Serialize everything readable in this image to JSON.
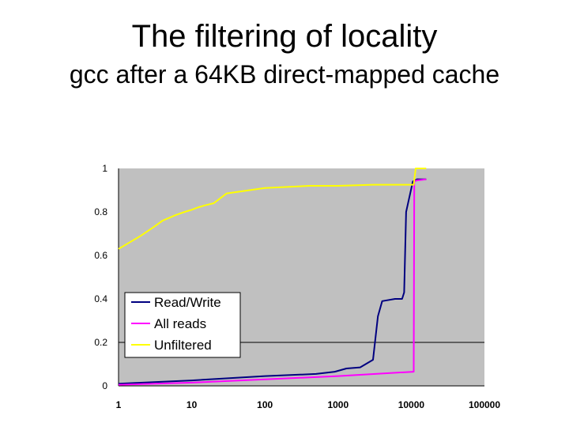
{
  "title": "The filtering of locality",
  "subtitle": "gcc after a 64KB direct-mapped cache",
  "colors": {
    "plot_background": "#c0c0c0",
    "Read/Write": "#000080",
    "All reads": "#ff00ff",
    "Unfiltered": "#ffff00"
  },
  "chart_data": {
    "type": "line",
    "title": "",
    "xlabel": "",
    "ylabel": "",
    "x_scale": "log",
    "xlim": [
      1,
      100000
    ],
    "ylim": [
      0,
      1
    ],
    "x_ticks": [
      "1",
      "10",
      "100",
      "1000",
      "10000",
      "100000"
    ],
    "y_ticks": [
      "0",
      "0.2",
      "0.4",
      "0.6",
      "0.8",
      "1"
    ],
    "gridlines": [
      0.2
    ],
    "legend_position": "bottom-left",
    "series": [
      {
        "name": "Read/Write",
        "x": [
          1,
          10,
          100,
          500,
          900,
          1300,
          2000,
          3000,
          3500,
          4000,
          6000,
          7500,
          8000,
          8500,
          10500,
          12000,
          16000
        ],
        "y": [
          0.01,
          0.025,
          0.045,
          0.055,
          0.065,
          0.08,
          0.085,
          0.12,
          0.32,
          0.39,
          0.4,
          0.4,
          0.43,
          0.8,
          0.94,
          0.95,
          0.95
        ]
      },
      {
        "name": "All reads",
        "x": [
          1,
          10,
          100,
          1000,
          10800,
          11000,
          12000,
          16000
        ],
        "y": [
          0.005,
          0.015,
          0.03,
          0.045,
          0.065,
          0.94,
          0.945,
          0.95
        ]
      },
      {
        "name": "Unfiltered",
        "x": [
          1,
          2,
          3,
          4,
          6,
          8,
          10,
          12,
          15,
          20,
          30,
          100,
          400,
          1000,
          3000,
          10000,
          10800,
          11500,
          12000,
          16000
        ],
        "y": [
          0.63,
          0.69,
          0.73,
          0.76,
          0.785,
          0.8,
          0.81,
          0.82,
          0.83,
          0.84,
          0.885,
          0.91,
          0.92,
          0.92,
          0.925,
          0.925,
          0.925,
          1.0,
          1.0,
          1.0
        ]
      }
    ]
  }
}
